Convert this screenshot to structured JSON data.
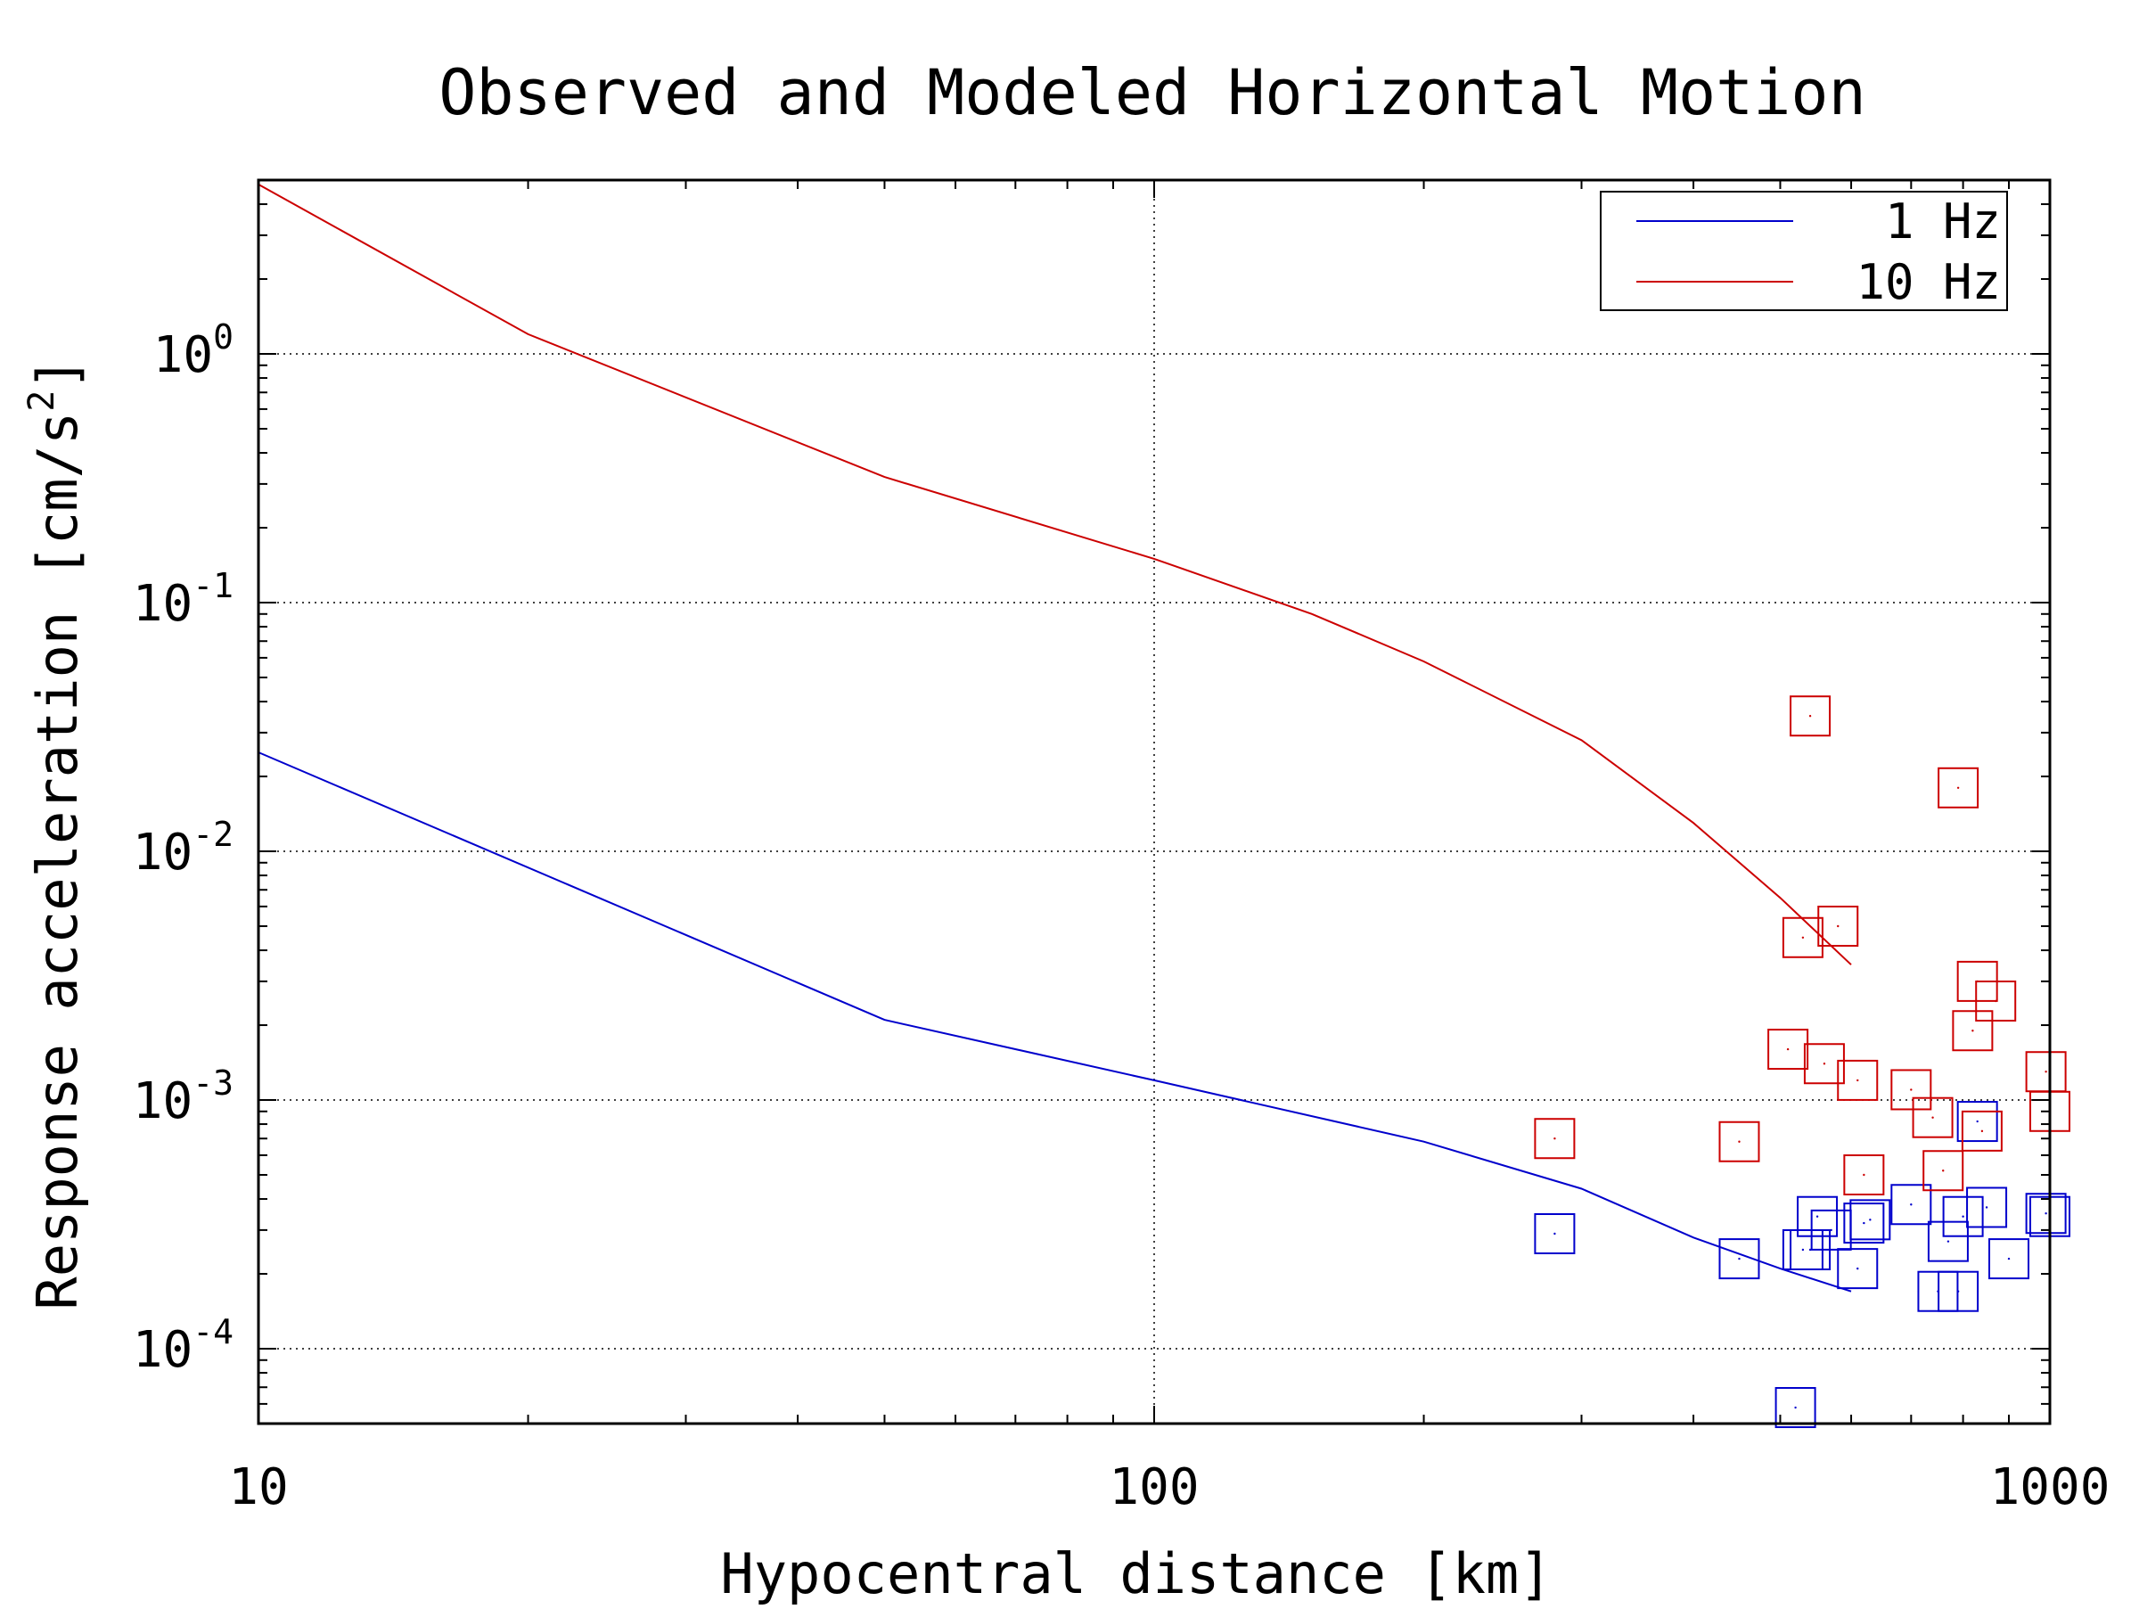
{
  "chart_data": {
    "type": "line",
    "title": "Observed and Modeled Horizontal Motion",
    "xlabel": "Hypocentral distance [km]",
    "ylabel_base": "Response acceleration [cm/s",
    "ylabel_exp": "2",
    "ylabel_close": "]",
    "x_scale": "log",
    "y_scale": "log",
    "xlim": [
      10,
      1000
    ],
    "ylim": [
      5e-05,
      5
    ],
    "grid": true,
    "legend_position": "top-right",
    "x_ticks": [
      {
        "value": 10,
        "label": "10"
      },
      {
        "value": 100,
        "label": "100"
      },
      {
        "value": 1000,
        "label": "1000"
      }
    ],
    "y_ticks": [
      {
        "value": 1,
        "base": "10",
        "exp": "0"
      },
      {
        "value": 0.1,
        "base": "10",
        "exp": "-1"
      },
      {
        "value": 0.01,
        "base": "10",
        "exp": "-2"
      },
      {
        "value": 0.001,
        "base": "10",
        "exp": "-3"
      },
      {
        "value": 0.0001,
        "base": "10",
        "exp": "-4"
      }
    ],
    "series": [
      {
        "name": "1 Hz",
        "color": "#0000cc",
        "line": {
          "x": [
            10,
            50,
            100,
            200,
            300,
            400,
            500,
            600
          ],
          "y": [
            0.025,
            0.0021,
            0.0012,
            0.00068,
            0.00044,
            0.00028,
            0.00021,
            0.00017
          ]
        },
        "observed": {
          "x": [
            280,
            450,
            520,
            530,
            540,
            550,
            570,
            610,
            620,
            630,
            700,
            750,
            770,
            790,
            800,
            830,
            850,
            900,
            990,
            1000
          ],
          "y": [
            0.00029,
            0.00023,
            5.8e-05,
            0.00025,
            0.00025,
            0.00034,
            0.0003,
            0.00021,
            0.00032,
            0.00033,
            0.00038,
            0.00017,
            0.00027,
            0.00017,
            0.00034,
            0.00082,
            0.00037,
            0.00023,
            0.00035,
            0.00034
          ]
        }
      },
      {
        "name": "10 Hz",
        "color": "#cc0000",
        "line": {
          "x": [
            10,
            20,
            50,
            100,
            150,
            200,
            300,
            400,
            500,
            600
          ],
          "y": [
            4.8,
            1.2,
            0.32,
            0.15,
            0.09,
            0.058,
            0.028,
            0.013,
            0.0065,
            0.0035
          ]
        },
        "observed": {
          "x": [
            280,
            450,
            510,
            530,
            540,
            560,
            580,
            610,
            620,
            700,
            740,
            760,
            790,
            820,
            830,
            840,
            870,
            990,
            1000
          ],
          "y": [
            0.0007,
            0.00068,
            0.0016,
            0.0045,
            0.035,
            0.0014,
            0.005,
            0.0012,
            0.0005,
            0.0011,
            0.00085,
            0.00052,
            0.018,
            0.0019,
            0.003,
            0.00075,
            0.0025,
            0.0013,
            0.0009
          ]
        }
      }
    ]
  }
}
